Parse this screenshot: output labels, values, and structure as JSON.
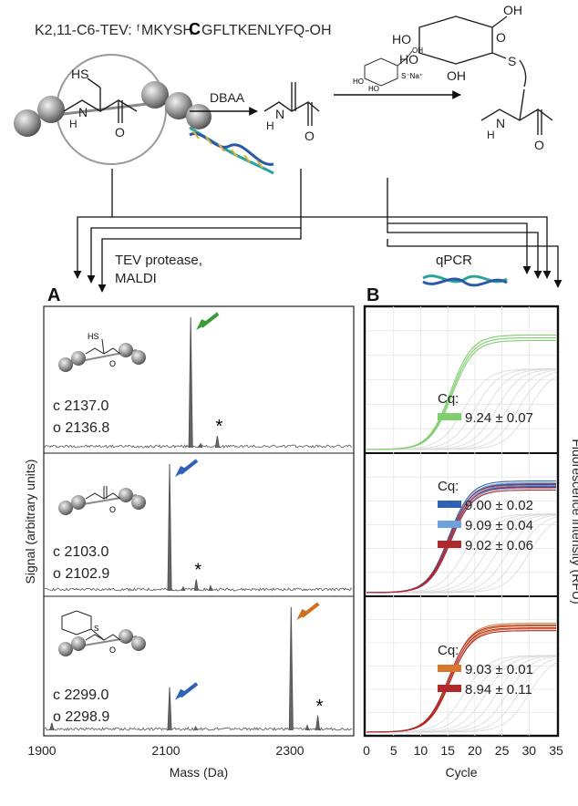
{
  "header": {
    "construct_name": "K2,11-C6-TEV:",
    "sequence_prefix": "f",
    "sequence_before": "MKYSH",
    "sequence_highlight": "C",
    "sequence_after": "GFLTKENLYFQ-OH"
  },
  "scheme": {
    "reagent_1": "DBAA",
    "reagent_2_sugar_label": "S⁻Na⁺",
    "cys_label": "HS",
    "product_s_label": "S",
    "nh_label": "N",
    "h_label": "H",
    "o_label": "O",
    "ho_label": "HO",
    "oh_label": "OH"
  },
  "routes": {
    "tev_label_line1": "TEV protease,",
    "tev_label_line2": "MALDI",
    "qpcr_label": "qPCR"
  },
  "panels": {
    "a_letter": "A",
    "b_letter": "B"
  },
  "chart_data": [
    {
      "type": "line",
      "panel": "A",
      "xlabel": "Mass (Da)",
      "ylabel": "Signal (arbitrary units)",
      "xlim": [
        1900,
        2400
      ],
      "xticks": [
        "1900",
        "2100",
        "2300"
      ],
      "subplots": [
        {
          "calc_label": "c 2137.0",
          "obs_label": "o 2136.8",
          "arrow_color": "#3c9a3a",
          "peaks": [
            {
              "x": 2137,
              "y": 1.0,
              "arrow": true
            },
            {
              "x": 2180,
              "y": 0.09,
              "star": true
            },
            {
              "x": 2153,
              "y": 0.03
            }
          ],
          "annotation": "*"
        },
        {
          "calc_label": "c 2103.0",
          "obs_label": "o 2102.9",
          "arrow_color": "#2f62b7",
          "peaks": [
            {
              "x": 2103,
              "y": 1.0,
              "arrow": true
            },
            {
              "x": 2146,
              "y": 0.09,
              "star": true
            },
            {
              "x": 2169,
              "y": 0.04
            },
            {
              "x": 2125,
              "y": 0.03
            }
          ],
          "annotation": "*"
        },
        {
          "calc_label": "c 2299.0",
          "obs_label": "o 2298.9",
          "arrow_color": "#d0701f",
          "peaks": [
            {
              "x": 2299,
              "y": 1.0,
              "arrow": true
            },
            {
              "x": 2103,
              "y": 0.35,
              "arrow": true,
              "arrow_color": "#2f62b7"
            },
            {
              "x": 2342,
              "y": 0.12,
              "star": true
            },
            {
              "x": 1913,
              "y": 0.06
            },
            {
              "x": 2145,
              "y": 0.03
            },
            {
              "x": 2325,
              "y": 0.04
            }
          ],
          "annotation": "*"
        }
      ]
    },
    {
      "type": "line",
      "panel": "B",
      "xlabel": "Cycle",
      "ylabel": "Fluorescence intensity (RFU)",
      "xlim": [
        0,
        35
      ],
      "xticks": [
        "0",
        "5",
        "10",
        "15",
        "20",
        "25",
        "30",
        "35"
      ],
      "subplots": [
        {
          "cq_title": "Cq:",
          "series": [
            {
              "label": "9.24 ± 0.07",
              "color": "#7fcf6f",
              "cq": 9.24
            }
          ]
        },
        {
          "cq_title": "Cq:",
          "series": [
            {
              "label": "9.00 ± 0.02",
              "color": "#2f62b7",
              "cq": 9.0
            },
            {
              "label": "9.09 ± 0.04",
              "color": "#6ea2dc",
              "cq": 9.09
            },
            {
              "label": "9.02 ± 0.06",
              "color": "#b0282c",
              "cq": 9.02
            }
          ]
        },
        {
          "cq_title": "Cq:",
          "series": [
            {
              "label": "9.03 ± 0.01",
              "color": "#d8782c",
              "cq": 9.03
            },
            {
              "label": "8.94 ± 0.11",
              "color": "#b0282c",
              "cq": 8.94
            }
          ]
        }
      ]
    }
  ]
}
